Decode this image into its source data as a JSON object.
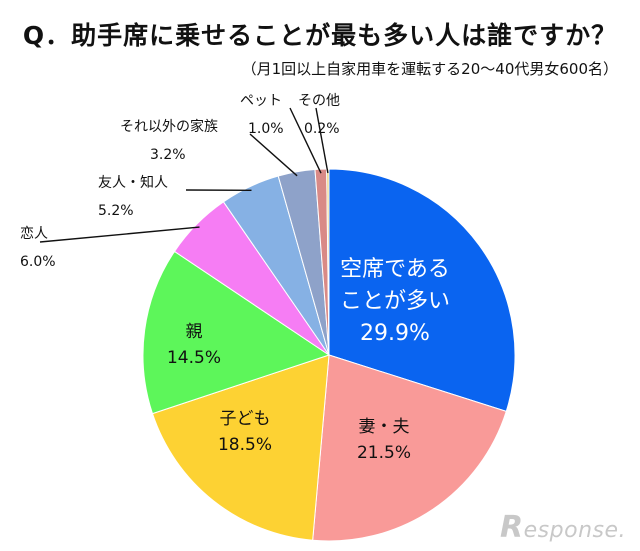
{
  "title": "Q．助手席に乗せることが最も多い人は誰ですか？",
  "subtitle": "（月1回以上自家用車を運転する20～40代男女600名）",
  "watermark": {
    "initial": "R",
    "rest": "esponse."
  },
  "chart_data": {
    "type": "pie",
    "start": "12 o'clock, clockwise",
    "slices": [
      {
        "label": "空席であることが多い",
        "label_lines": [
          "空席である",
          "ことが多い"
        ],
        "value": 29.9,
        "value_text": "29.9%",
        "color": "#0a64f0",
        "text_color": "#ffffff",
        "placement": "inside"
      },
      {
        "label": "妻・夫",
        "label_lines": [
          "妻・夫"
        ],
        "value": 21.5,
        "value_text": "21.5%",
        "color": "#f99a98",
        "text_color": "#111111",
        "placement": "inside"
      },
      {
        "label": "子ども",
        "label_lines": [
          "子ども"
        ],
        "value": 18.5,
        "value_text": "18.5%",
        "color": "#fdd233",
        "text_color": "#111111",
        "placement": "inside"
      },
      {
        "label": "親",
        "label_lines": [
          "親"
        ],
        "value": 14.5,
        "value_text": "14.5%",
        "color": "#5df65a",
        "text_color": "#111111",
        "placement": "inside"
      },
      {
        "label": "恋人",
        "label_lines": [
          "恋人"
        ],
        "value": 6.0,
        "value_text": "6.0%",
        "color": "#f67df4",
        "text_color": "#111111",
        "placement": "outside"
      },
      {
        "label": "友人・知人",
        "label_lines": [
          "友人・知人"
        ],
        "value": 5.2,
        "value_text": "5.2%",
        "color": "#86b1e4",
        "text_color": "#111111",
        "placement": "outside"
      },
      {
        "label": "それ以外の家族",
        "label_lines": [
          "それ以外の家族"
        ],
        "value": 3.2,
        "value_text": "3.2%",
        "color": "#8ea2c9",
        "text_color": "#111111",
        "placement": "outside"
      },
      {
        "label": "ペット",
        "label_lines": [
          "ペット"
        ],
        "value": 1.0,
        "value_text": "1.0%",
        "color": "#d98a86",
        "text_color": "#111111",
        "placement": "outside"
      },
      {
        "label": "その他",
        "label_lines": [
          "その他"
        ],
        "value": 0.2,
        "value_text": "0.2%",
        "color": "#e8d27a",
        "text_color": "#111111",
        "placement": "outside"
      }
    ]
  }
}
